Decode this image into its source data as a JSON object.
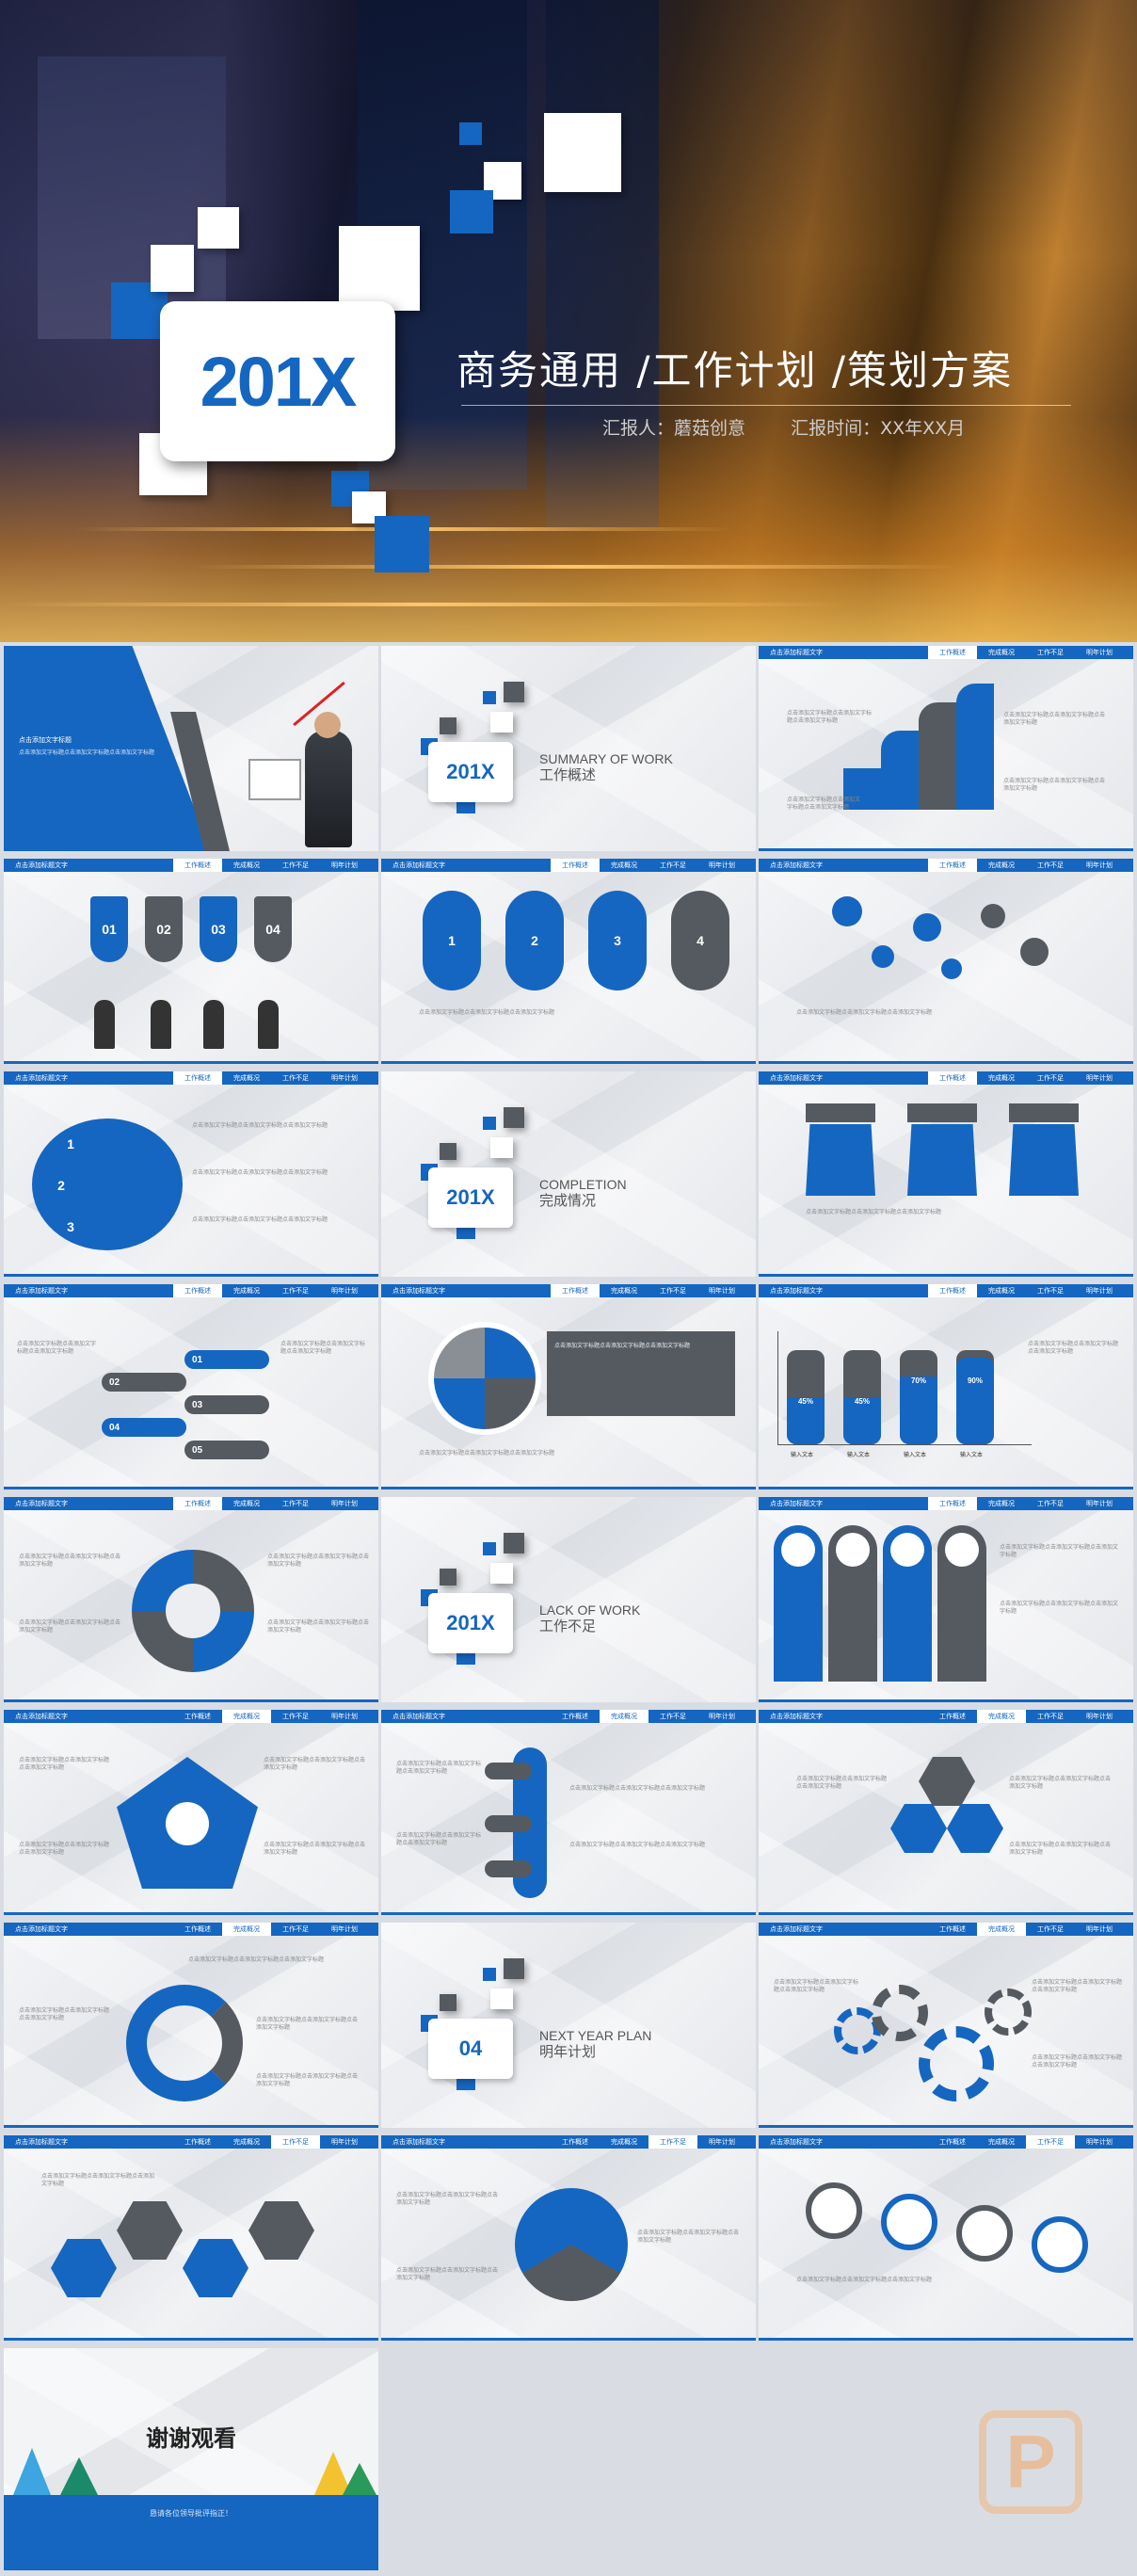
{
  "hero": {
    "badge": "201X",
    "title": "商务通用 /工作计划 /策划方案",
    "reporter": "汇报人：蘑菇创意",
    "time": "汇报时间：XX年XX月"
  },
  "common": {
    "bar_title": "点击添加标题文字",
    "nav": [
      "工作概述",
      "完成概况",
      "工作不足",
      "明年计划"
    ],
    "text": "点击添加文字标题",
    "placeholder": "点击添加文字标题点击添加文字标题点击添加文字标题",
    "label": "文字标题",
    "input": "输入文本"
  },
  "sections": [
    {
      "num": "201X",
      "en": "SUMMARY OF WORK",
      "cn": "工作概述"
    },
    {
      "num": "201X",
      "en": "COMPLETION",
      "cn": "完成情况"
    },
    {
      "num": "201X",
      "en": "LACK OF WORK",
      "cn": "工作不足"
    },
    {
      "num": "04",
      "en": "NEXT YEAR PLAN",
      "cn": "明年计划"
    }
  ],
  "slide_numbers": {
    "steps": [
      "01",
      "02",
      "03",
      "04"
    ],
    "pills": [
      "1",
      "2",
      "3",
      "4"
    ],
    "rings": [
      "1",
      "2",
      "3"
    ],
    "list": [
      "01",
      "02",
      "03",
      "04",
      "05"
    ],
    "percents": [
      "45%",
      "45%",
      "70%",
      "90%"
    ]
  },
  "thanks": {
    "title": "谢谢观看",
    "sub": "恳请各位领导批评指正！"
  },
  "colors": {
    "accent": "#1566c0",
    "dark": "#555a61"
  }
}
